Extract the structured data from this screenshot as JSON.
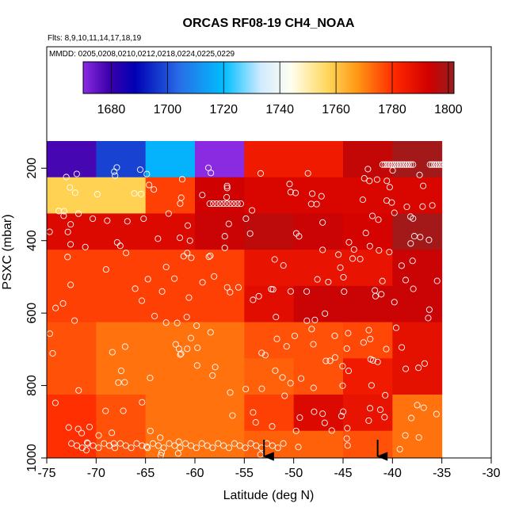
{
  "chart_data": {
    "type": "heatmap",
    "title": "ORCAS RF08-19 CH4_NOAA",
    "subtitle_flights": "Flts: 8,9,10,11,14,17,18,19",
    "subtitle_dates": "MMDD: 0205,0208,0210,0212,0218,0224,0225,0229",
    "xlabel": "Latitude (deg N)",
    "ylabel": "PSXC (mbar)",
    "xlim": [
      -75,
      -30
    ],
    "ylim": [
      1000,
      100
    ],
    "x_ticks": [
      "-75",
      "-70",
      "-65",
      "-60",
      "-55",
      "-50",
      "-45",
      "-40",
      "-35",
      "-30"
    ],
    "y_ticks": [
      "200",
      "400",
      "600",
      "800",
      "1000"
    ],
    "colorbar": {
      "range": [
        1670,
        1802
      ],
      "ticks": [
        "1680",
        "1700",
        "1720",
        "1740",
        "1760",
        "1780",
        "1800"
      ]
    },
    "lat_bin_edges": [
      -75,
      -70,
      -65,
      -60,
      -55,
      -50,
      -45,
      -40,
      -35
    ],
    "pressure_bin_edges": [
      125,
      225,
      325,
      425,
      525,
      625,
      725,
      825,
      925,
      1025
    ],
    "cells": [
      [
        1678,
        1698,
        1718,
        1670,
        1785,
        1785,
        1795,
        1800
      ],
      [
        1758,
        1758,
        1778,
        1793,
        1791,
        1791,
        1791,
        1791
      ],
      [
        1790,
        1790,
        1790,
        1794,
        1796,
        1794,
        1792,
        1800
      ],
      [
        1778,
        1778,
        1778,
        1778,
        1787,
        1787,
        1787,
        1794
      ],
      [
        1778,
        1778,
        1778,
        1778,
        1789,
        1794,
        1794,
        1794
      ],
      [
        1776,
        1772,
        1772,
        1772,
        1776,
        1776,
        1777,
        1788
      ],
      [
        1776,
        1772,
        1772,
        1772,
        1774,
        1776,
        1785,
        1788
      ],
      [
        1780,
        1776,
        1772,
        1772,
        1778,
        1790,
        1787,
        1772
      ],
      [
        1780,
        1776,
        1772,
        1772,
        1774,
        1774,
        1776,
        1772
      ]
    ],
    "observation_arrows_lat": [
      -53,
      -41.5
    ]
  }
}
